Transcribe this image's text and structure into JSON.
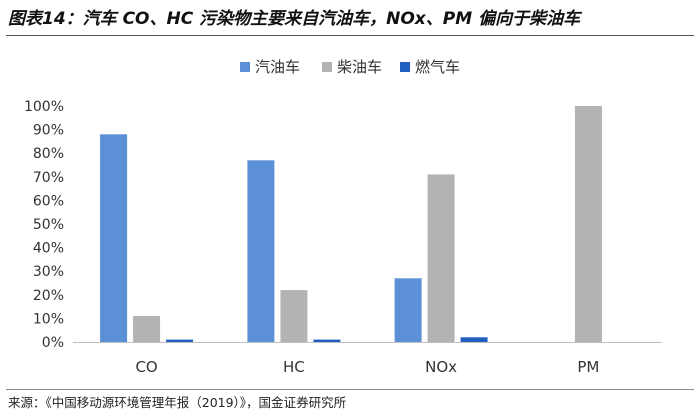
{
  "header": {
    "title": "图表14：汽车 CO、HC 污染物主要来自汽油车，NOx、PM 偏向于柴油车"
  },
  "footer": {
    "source": "来源：《中国移动源环境管理年报（2019）》，国金证券研究所"
  },
  "chart_data": {
    "type": "bar",
    "categories": [
      "CO",
      "HC",
      "NOx",
      "PM"
    ],
    "series": [
      {
        "name": "汽油车",
        "values": [
          88,
          77,
          27,
          0
        ],
        "color": "#5b8fd6"
      },
      {
        "name": "柴油车",
        "values": [
          11,
          22,
          71,
          100
        ],
        "color": "#b3b3b3"
      },
      {
        "name": "燃气车",
        "values": [
          1,
          1,
          2,
          0
        ],
        "color": "#1f5fbf"
      }
    ],
    "ylim": [
      0,
      100
    ],
    "yticks": [
      0,
      10,
      20,
      30,
      40,
      50,
      60,
      70,
      80,
      90,
      100
    ],
    "y_tick_format": "percent",
    "legend_position": "top-center",
    "grid": false
  }
}
